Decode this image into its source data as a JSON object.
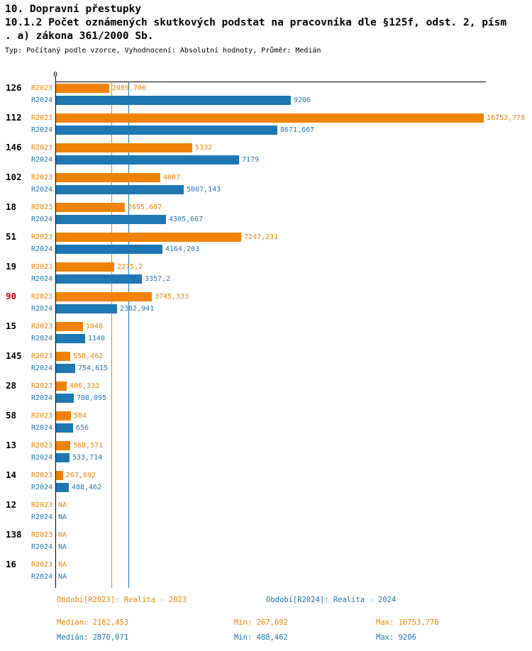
{
  "title": {
    "line1": "10. Dopravní přestupky",
    "line2": "10.1.2 Počet oznámených skutkových podstat na pracovníka dle §125f, odst. 2, písm",
    "line3": ". a) zákona 361/2000 Sb.",
    "meta": "Typ: Počítaný podle vzorce, Vyhodnocení: Absolutní hodnoty, Průměr: Medián"
  },
  "chart_data": {
    "type": "bar",
    "orientation": "horizontal",
    "title": "10.1.2 Počet oznámených skutkových podstat na pracovníka dle §125f, odst. 2, písm. a) zákona 361/2000 Sb.",
    "xlabel": "",
    "ylabel": "",
    "x_axis": {
      "zero_label": "0",
      "xlim": [
        0,
        16753.778
      ]
    },
    "grid": false,
    "legend_position": "bottom",
    "categories": [
      "126",
      "112",
      "146",
      "102",
      "18",
      "51",
      "19",
      "90",
      "15",
      "145",
      "28",
      "58",
      "13",
      "14",
      "12",
      "138",
      "16"
    ],
    "highlighted_category": "90",
    "na_text": "NA",
    "series": [
      {
        "name": "R2023",
        "period_label": "Období[R2023]: Realita - 2023",
        "color": "#f08306",
        "median": 2182.453,
        "values": [
          2089.706,
          16753.778,
          5332,
          4087,
          2695.667,
          7247.231,
          2275.2,
          3745.333,
          1048,
          558.462,
          406.333,
          584,
          568.571,
          267.692,
          null,
          null,
          null
        ],
        "labels": [
          "2089,706",
          "16753,778",
          "5332",
          "4087",
          "2695,667",
          "7247,231",
          "2275,2",
          "3745,333",
          "1048",
          "558,462",
          "406,333",
          "584",
          "568,571",
          "267,692",
          "NA",
          "NA",
          "NA"
        ],
        "stats": {
          "median_label": "Medián: 2182,453",
          "min_label": "Min: 267,692",
          "max_label": "Max: 16753,778"
        }
      },
      {
        "name": "R2024",
        "period_label": "Období[R2024]: Realita - 2024",
        "color": "#1f77b4",
        "median": 2870.071,
        "values": [
          9206,
          8671.667,
          7179,
          5007.143,
          4305.667,
          4164.203,
          3357.2,
          2382.941,
          1140,
          754.615,
          708.095,
          656,
          533.714,
          488.462,
          null,
          null,
          null
        ],
        "labels": [
          "9206",
          "8671,667",
          "7179",
          "5007,143",
          "4305,667",
          "4164,203",
          "3357,2",
          "2382,941",
          "1140",
          "754,615",
          "708,095",
          "656",
          "533,714",
          "488,462",
          "NA",
          "NA",
          "NA"
        ],
        "stats": {
          "median_label": "Medián: 2870,071",
          "min_label": "Min: 488,462",
          "max_label": "Max: 9206"
        }
      }
    ]
  },
  "colors": {
    "r2023": "#f08306",
    "r2024": "#1f77b4",
    "highlight": "#cc0000",
    "axis": "#000000"
  }
}
